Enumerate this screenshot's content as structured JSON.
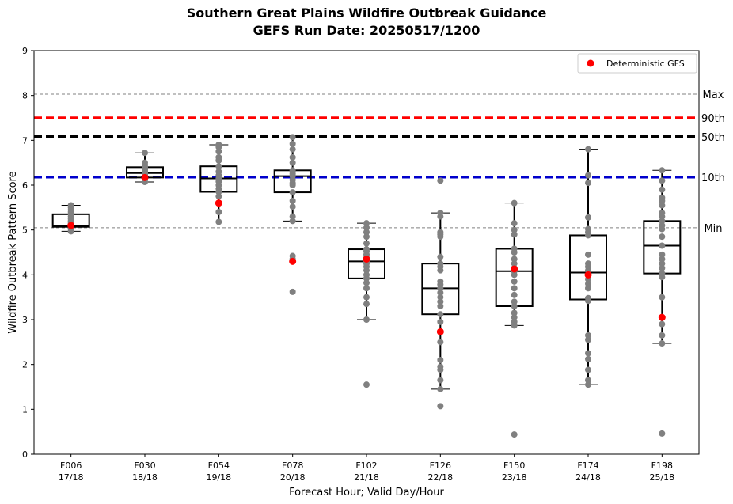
{
  "chart_data": {
    "type": "box",
    "title": "Southern Great Plains Wildfire Outbreak Guidance",
    "subtitle": "GEFS Run Date: 20250517/1200",
    "xlabel": "Forecast Hour; Valid Day/Hour",
    "ylabel": "Wildfire Outbreak Pattern Score",
    "ylim": [
      0,
      9
    ],
    "yticks": [
      "0",
      "1",
      "2",
      "3",
      "4",
      "5",
      "6",
      "7",
      "8",
      "9"
    ],
    "categories": [
      {
        "hour": "F006",
        "valid": "17/18"
      },
      {
        "hour": "F030",
        "valid": "18/18"
      },
      {
        "hour": "F054",
        "valid": "19/18"
      },
      {
        "hour": "F078",
        "valid": "20/18"
      },
      {
        "hour": "F102",
        "valid": "21/18"
      },
      {
        "hour": "F126",
        "valid": "22/18"
      },
      {
        "hour": "F150",
        "valid": "23/18"
      },
      {
        "hour": "F174",
        "valid": "24/18"
      },
      {
        "hour": "F198",
        "valid": "25/18"
      }
    ],
    "boxes": [
      {
        "whislo": 4.97,
        "q1": 5.07,
        "med": 5.1,
        "q3": 5.35,
        "whishi": 5.55
      },
      {
        "whislo": 6.07,
        "q1": 6.17,
        "med": 6.27,
        "q3": 6.4,
        "whishi": 6.72
      },
      {
        "whislo": 5.18,
        "q1": 5.85,
        "med": 6.15,
        "q3": 6.42,
        "whishi": 6.9
      },
      {
        "whislo": 5.2,
        "q1": 5.84,
        "med": 6.2,
        "q3": 6.33,
        "whishi": 7.07
      },
      {
        "whislo": 3.0,
        "q1": 3.92,
        "med": 4.3,
        "q3": 4.57,
        "whishi": 5.15
      },
      {
        "whislo": 1.45,
        "q1": 3.12,
        "med": 3.7,
        "q3": 4.25,
        "whishi": 5.38
      },
      {
        "whislo": 2.87,
        "q1": 3.3,
        "med": 4.08,
        "q3": 4.58,
        "whishi": 5.6
      },
      {
        "whislo": 1.55,
        "q1": 3.45,
        "med": 4.05,
        "q3": 4.88,
        "whishi": 6.8
      },
      {
        "whislo": 2.47,
        "q1": 4.03,
        "med": 4.65,
        "q3": 5.2,
        "whishi": 6.33
      }
    ],
    "members": [
      [
        4.97,
        5.02,
        5.05,
        5.07,
        5.1,
        5.12,
        5.15,
        5.18,
        5.2,
        5.25,
        5.3,
        5.35,
        5.4,
        5.45,
        5.5,
        5.55
      ],
      [
        6.07,
        6.12,
        6.17,
        6.2,
        6.22,
        6.25,
        6.27,
        6.3,
        6.33,
        6.37,
        6.4,
        6.45,
        6.5,
        6.72
      ],
      [
        5.18,
        5.4,
        5.6,
        5.75,
        5.85,
        5.92,
        6.0,
        6.08,
        6.15,
        6.22,
        6.3,
        6.42,
        6.55,
        6.62,
        6.75,
        6.85,
        6.9
      ],
      [
        3.62,
        4.35,
        4.42,
        5.2,
        5.3,
        5.52,
        5.65,
        5.84,
        6.0,
        6.05,
        6.12,
        6.2,
        6.25,
        6.3,
        6.33,
        6.5,
        6.62,
        6.8,
        6.92,
        7.07
      ],
      [
        1.55,
        3.0,
        3.35,
        3.5,
        3.7,
        3.82,
        3.92,
        4.0,
        4.1,
        4.18,
        4.25,
        4.3,
        4.38,
        4.45,
        4.52,
        4.57,
        4.7,
        4.85,
        4.95,
        5.05,
        5.15
      ],
      [
        1.07,
        1.45,
        1.65,
        1.88,
        1.95,
        2.1,
        2.5,
        2.95,
        3.12,
        3.3,
        3.4,
        3.5,
        3.6,
        3.7,
        3.78,
        3.85,
        4.1,
        4.18,
        4.25,
        4.4,
        4.85,
        4.9,
        4.95,
        5.3,
        5.38,
        6.1
      ],
      [
        0.44,
        2.87,
        2.95,
        3.05,
        3.15,
        3.3,
        3.4,
        3.55,
        3.7,
        3.85,
        4.0,
        4.08,
        4.15,
        4.25,
        4.35,
        4.5,
        4.58,
        4.9,
        5.0,
        5.15,
        5.6
      ],
      [
        1.55,
        1.65,
        1.88,
        2.12,
        2.25,
        2.55,
        2.65,
        3.42,
        3.48,
        3.7,
        3.8,
        3.9,
        4.0,
        4.1,
        4.18,
        4.25,
        4.45,
        4.88,
        4.95,
        5.02,
        5.28,
        6.05,
        6.22,
        6.8
      ],
      [
        0.46,
        2.47,
        2.65,
        2.9,
        3.05,
        3.5,
        3.95,
        4.03,
        4.15,
        4.25,
        4.35,
        4.45,
        4.65,
        4.85,
        5.02,
        5.1,
        5.2,
        5.3,
        5.38,
        5.55,
        5.65,
        5.72,
        5.9,
        6.1,
        6.33
      ]
    ],
    "deterministic": {
      "name": "Deterministic GFS",
      "values": [
        5.1,
        6.17,
        5.6,
        4.3,
        4.35,
        2.73,
        4.13,
        4.0,
        3.05
      ]
    },
    "reference_lines": [
      {
        "label": "Max",
        "value": 8.03,
        "color": "#808080",
        "style": "dashed-thin"
      },
      {
        "label": "90th",
        "value": 7.5,
        "color": "#ff0000",
        "style": "dashed-thick"
      },
      {
        "label": "50th",
        "value": 7.08,
        "color": "#000000",
        "style": "dashed-thick"
      },
      {
        "label": "10th",
        "value": 6.18,
        "color": "#0000cc",
        "style": "dashed-thick"
      },
      {
        "label": "Min",
        "value": 5.05,
        "color": "#808080",
        "style": "dashed-thin"
      }
    ],
    "member_color": "#808080",
    "deterministic_color": "#ff0000",
    "legend_position": "top-right",
    "grid": false
  }
}
